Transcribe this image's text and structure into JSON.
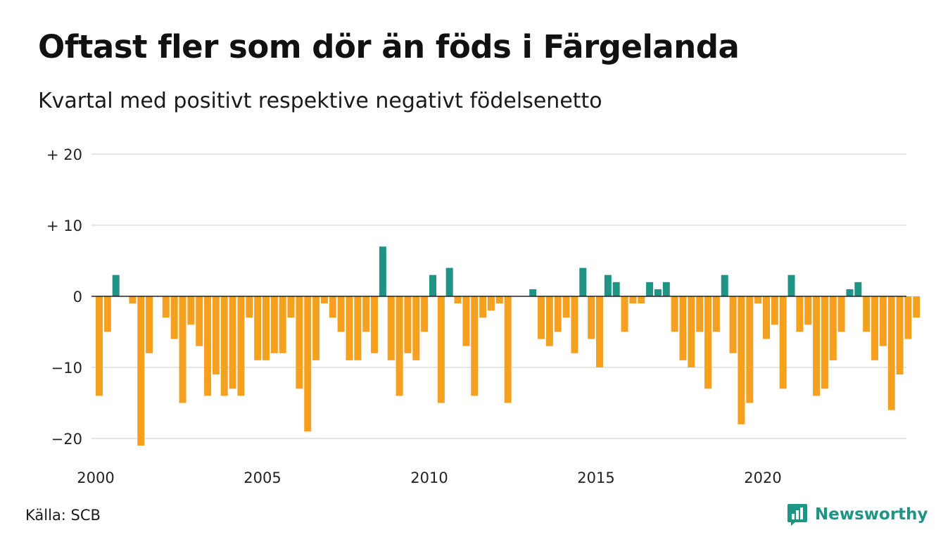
{
  "title": "Oftast fler som dör än föds i Färgelanda",
  "subtitle": "Kvartal med positivt respektive negativt födelsenetto",
  "source": "Källa: SCB",
  "brand": "Newsworthy",
  "colors": {
    "positive": "#1f9484",
    "negative": "#f5a01e",
    "grid": "#dddddd",
    "axis": "#222222"
  },
  "chart_data": {
    "type": "bar",
    "x_start": "2000 Q1",
    "x_tick_labels": [
      "2000",
      "2005",
      "2010",
      "2015",
      "2020"
    ],
    "y_tick_labels": [
      "+ 20",
      "+ 10",
      "0",
      "−10",
      "−20"
    ],
    "y_ticks": [
      20,
      10,
      0,
      -10,
      -20
    ],
    "ylim": [
      -23,
      20
    ],
    "grid": true,
    "values": [
      -14,
      -5,
      3,
      0,
      -1,
      -21,
      -8,
      0,
      -3,
      -6,
      -15,
      -4,
      -7,
      -14,
      -11,
      -14,
      -13,
      -14,
      -3,
      -9,
      -9,
      -8,
      -8,
      -3,
      -13,
      -19,
      -9,
      -1,
      -3,
      -5,
      -9,
      -9,
      -5,
      -8,
      7,
      -9,
      -14,
      -8,
      -9,
      -5,
      3,
      -15,
      4,
      -1,
      -7,
      -14,
      -3,
      -2,
      -1,
      -15,
      0,
      0,
      1,
      -6,
      -7,
      -5,
      -3,
      -8,
      4,
      -6,
      -10,
      3,
      2,
      -5,
      -1,
      -1,
      2,
      1,
      2,
      -5,
      -9,
      -10,
      -5,
      -13,
      -5,
      3,
      -8,
      -18,
      -15,
      -1,
      -6,
      -4,
      -13,
      3,
      -5,
      -4,
      -14,
      -13,
      -9,
      -5,
      1,
      2,
      -5,
      -9,
      -7,
      -16,
      -11,
      -6,
      -3
    ]
  }
}
